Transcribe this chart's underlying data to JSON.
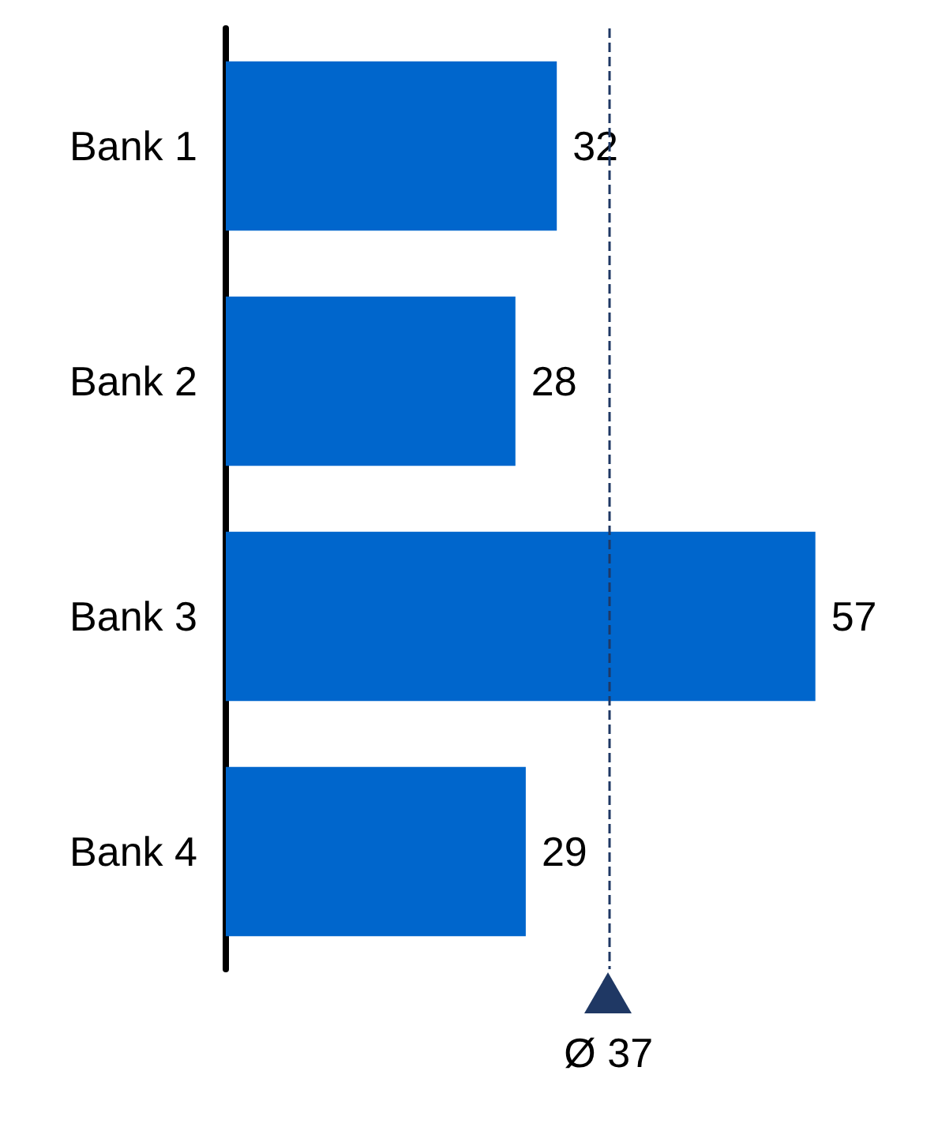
{
  "chart_data": {
    "type": "bar",
    "orientation": "horizontal",
    "categories": [
      "Bank 1",
      "Bank 2",
      "Bank 3",
      "Bank 4"
    ],
    "values": [
      32,
      28,
      57,
      29
    ],
    "color": "#0066cc",
    "data_labels": true,
    "ref_lines": [
      {
        "axis": "x",
        "value": 37,
        "label": "Ø 37",
        "color": "#1f3864",
        "line_style": "dashed"
      }
    ]
  }
}
